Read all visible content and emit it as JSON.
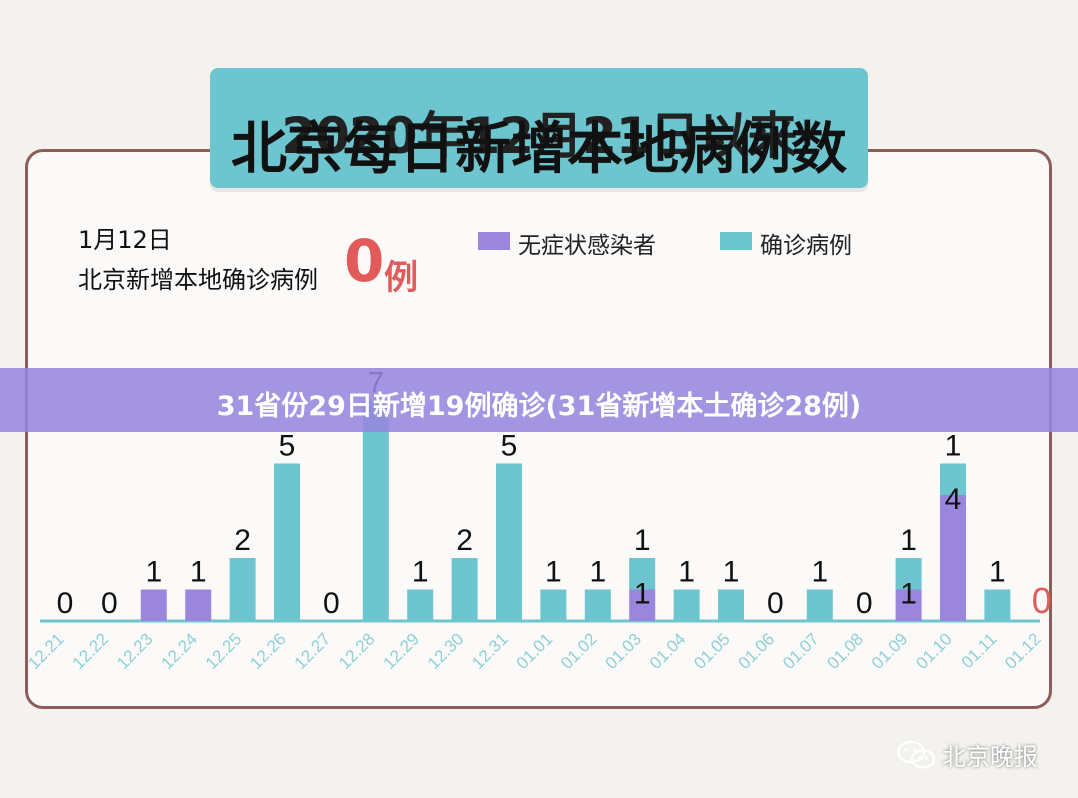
{
  "header": {
    "title_line1": "2020年12月21日以来",
    "title_line2": "北京每日新增本地病例数"
  },
  "summary": {
    "date": "1月12日",
    "label": "北京新增本地确诊病例",
    "value": "0",
    "unit": "例"
  },
  "banner": {
    "text": "31省份29日新增19例确诊(31省新增本土确诊28例)"
  },
  "watermark": {
    "text": "北京晚报",
    "icon": "wechat-icon"
  },
  "colors": {
    "asymptomatic": "#9b86de",
    "confirmed": "#6cc5cf",
    "axis_label": "#8fd0d8",
    "highlight": "#e25a5a"
  },
  "chart_data": {
    "type": "bar",
    "stacked": true,
    "categories": [
      "12.21",
      "12.22",
      "12.23",
      "12.24",
      "12.25",
      "12.26",
      "12.27",
      "12.28",
      "12.29",
      "12.30",
      "12.31",
      "01.01",
      "01.02",
      "01.03",
      "01.04",
      "01.05",
      "01.06",
      "01.07",
      "01.08",
      "01.09",
      "01.10",
      "01.11",
      "01.12"
    ],
    "series": [
      {
        "name": "无症状感染者",
        "values": [
          0,
          0,
          1,
          1,
          0,
          0,
          0,
          0,
          0,
          0,
          0,
          0,
          0,
          1,
          0,
          0,
          0,
          0,
          0,
          1,
          4,
          0,
          0
        ]
      },
      {
        "name": "确诊病例",
        "values": [
          0,
          0,
          0,
          0,
          2,
          5,
          0,
          7,
          1,
          2,
          5,
          1,
          1,
          1,
          1,
          1,
          0,
          1,
          0,
          1,
          1,
          1,
          0
        ]
      }
    ],
    "legend": "top-right",
    "grid": false
  }
}
